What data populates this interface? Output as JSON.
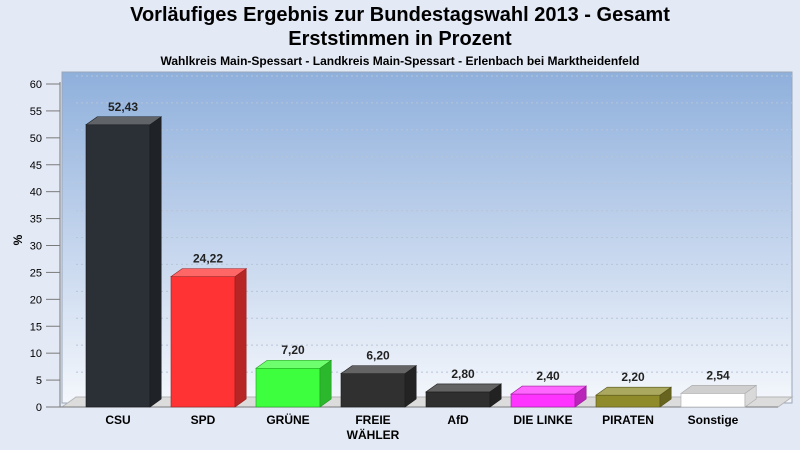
{
  "chart_data": {
    "type": "bar",
    "title": "Vorläufiges Ergebnis zur Bundestagswahl 2013 - Gesamt",
    "title_line2": "Erststimmen in Prozent",
    "subtitle": "Wahlkreis Main-Spessart - Landkreis Main-Spessart - Erlenbach bei Marktheidenfeld",
    "ylabel": "%",
    "ylim": [
      0,
      60
    ],
    "yticks": [
      0,
      5,
      10,
      15,
      20,
      25,
      30,
      35,
      40,
      45,
      50,
      55,
      60
    ],
    "grid": true,
    "categories": [
      {
        "label": [
          "CSU"
        ],
        "value": 52.43,
        "value_label": "52,43",
        "color": "#2b2f36"
      },
      {
        "label": [
          "SPD"
        ],
        "value": 24.22,
        "value_label": "24,22",
        "color": "#ff3333"
      },
      {
        "label": [
          "GRÜNE"
        ],
        "value": 7.2,
        "value_label": "7,20",
        "color": "#3dff3d"
      },
      {
        "label": [
          "FREIE",
          "WÄHLER"
        ],
        "value": 6.2,
        "value_label": "6,20",
        "color": "#303030"
      },
      {
        "label": [
          "AfD"
        ],
        "value": 2.8,
        "value_label": "2,80",
        "color": "#2f2f2f"
      },
      {
        "label": [
          "DIE LINKE"
        ],
        "value": 2.4,
        "value_label": "2,40",
        "color": "#ff33ff"
      },
      {
        "label": [
          "PIRATEN"
        ],
        "value": 2.2,
        "value_label": "2,20",
        "color": "#8f8b2b"
      },
      {
        "label": [
          "Sonstige"
        ],
        "value": 2.54,
        "value_label": "2,54",
        "color": "#ffffff"
      }
    ]
  }
}
